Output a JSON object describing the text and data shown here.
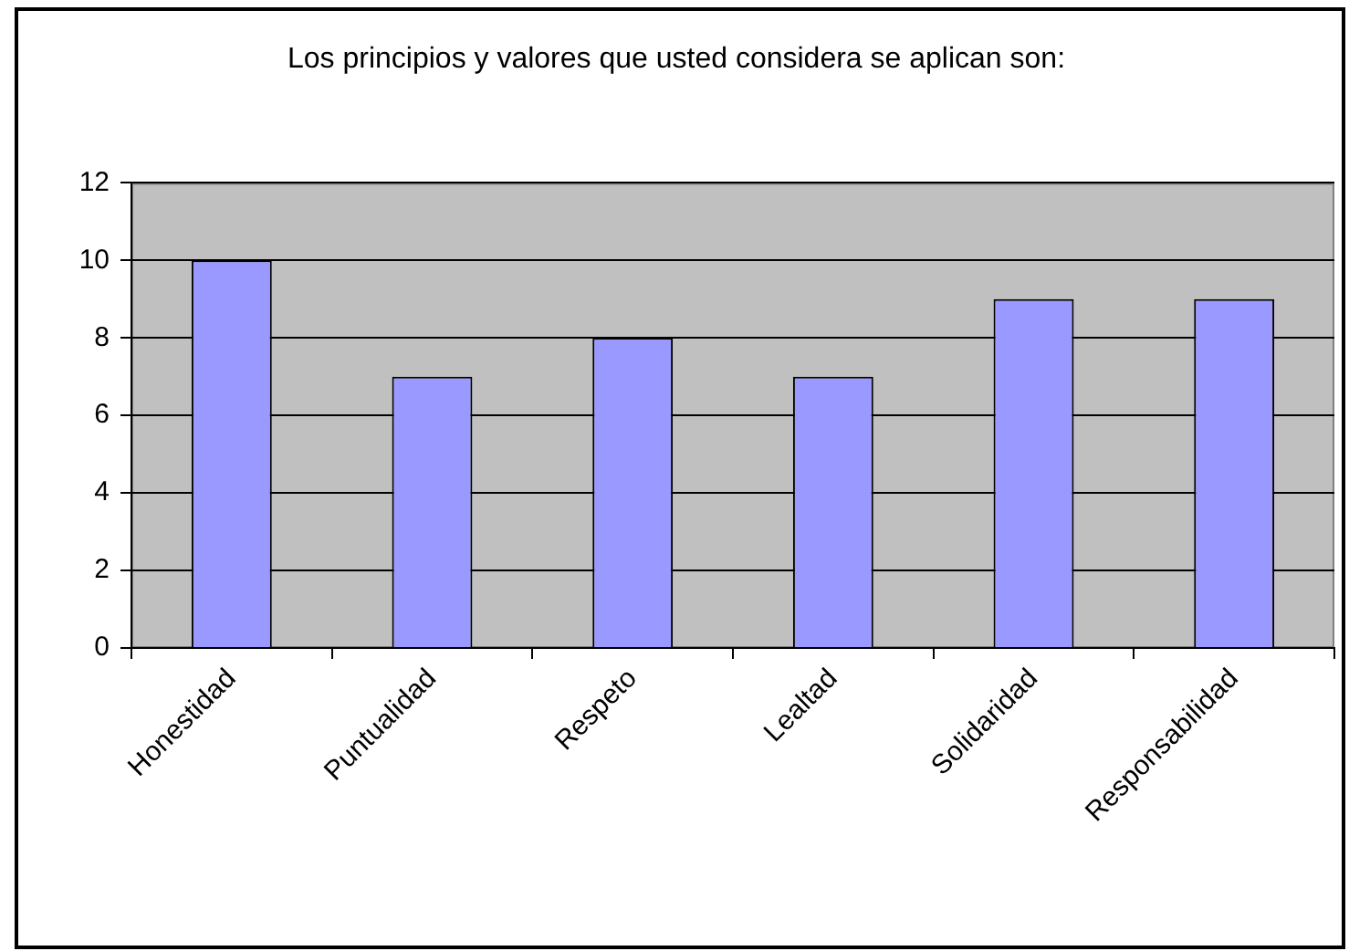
{
  "chart_data": {
    "type": "bar",
    "title": "Los principios y valores que usted considera se aplican son:",
    "categories": [
      "Honestidad",
      "Puntualidad",
      "Respeto",
      "Lealtad",
      "Solidaridad",
      "Responsabilidad"
    ],
    "values": [
      10,
      7,
      8,
      7,
      9,
      9
    ],
    "color": "#9999ff",
    "ylim": [
      0,
      12
    ],
    "yticks": [
      0,
      2,
      4,
      6,
      8,
      10,
      12
    ],
    "grid": "y"
  }
}
